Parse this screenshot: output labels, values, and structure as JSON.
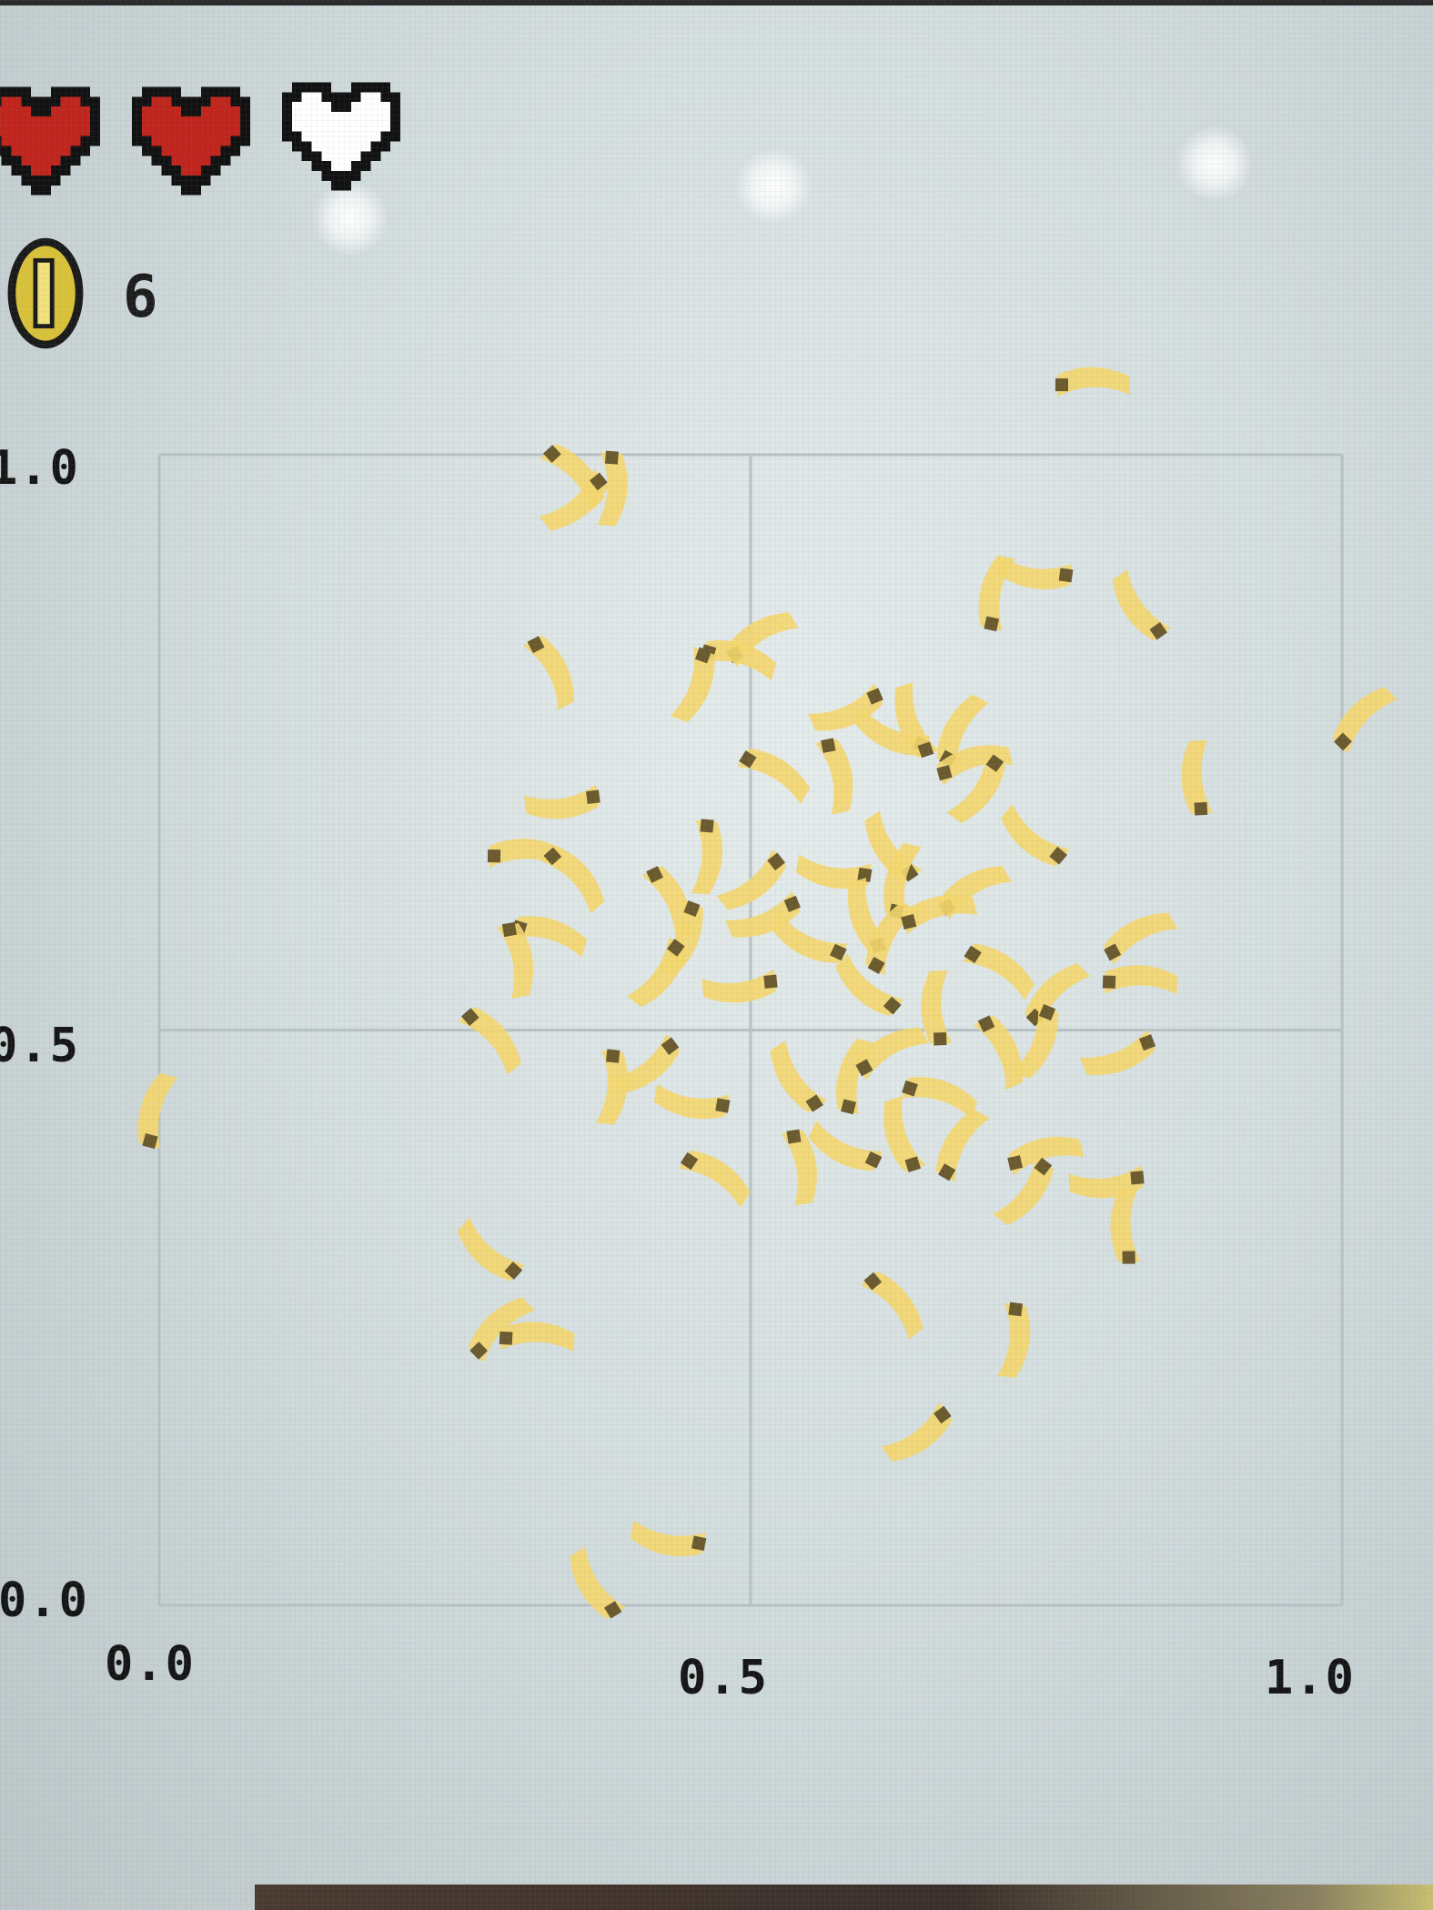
{
  "hud": {
    "hearts": [
      {
        "state": "full",
        "color": "#c0251d"
      },
      {
        "state": "full",
        "color": "#c0251d"
      },
      {
        "state": "empty",
        "color": "#ffffff"
      }
    ],
    "coin_icon": "gold-coin-icon",
    "coin_color": "#d9c23a",
    "coin_count": "6"
  },
  "chart_data": {
    "type": "scatter",
    "title": "",
    "xlabel": "",
    "ylabel": "",
    "xlim": [
      0.0,
      1.0
    ],
    "ylim": [
      0.0,
      1.0
    ],
    "grid": true,
    "x_ticks": [
      "0.0",
      "0.5",
      "1.0"
    ],
    "y_ticks": [
      "0.0",
      "0.5",
      "1.0"
    ],
    "marker": "banana-sprite",
    "marker_color": "#f5d76e",
    "points": [
      {
        "x": 0.79,
        "y": 1.06
      },
      {
        "x": 0.35,
        "y": 0.98
      },
      {
        "x": 0.38,
        "y": 0.97
      },
      {
        "x": 0.35,
        "y": 0.96
      },
      {
        "x": 0.74,
        "y": 0.9
      },
      {
        "x": 0.83,
        "y": 0.87
      },
      {
        "x": 0.71,
        "y": 0.88
      },
      {
        "x": 0.51,
        "y": 0.84
      },
      {
        "x": 0.49,
        "y": 0.82
      },
      {
        "x": 0.33,
        "y": 0.81
      },
      {
        "x": 0.45,
        "y": 0.8
      },
      {
        "x": 0.58,
        "y": 0.78
      },
      {
        "x": 0.62,
        "y": 0.76
      },
      {
        "x": 0.64,
        "y": 0.77
      },
      {
        "x": 0.68,
        "y": 0.76
      },
      {
        "x": 0.69,
        "y": 0.73
      },
      {
        "x": 0.52,
        "y": 0.72
      },
      {
        "x": 0.57,
        "y": 0.72
      },
      {
        "x": 0.69,
        "y": 0.71
      },
      {
        "x": 0.34,
        "y": 0.7
      },
      {
        "x": 0.74,
        "y": 0.67
      },
      {
        "x": 0.88,
        "y": 0.72
      },
      {
        "x": 1.02,
        "y": 0.77
      },
      {
        "x": 0.31,
        "y": 0.65
      },
      {
        "x": 0.35,
        "y": 0.63
      },
      {
        "x": 0.46,
        "y": 0.65
      },
      {
        "x": 0.5,
        "y": 0.63
      },
      {
        "x": 0.57,
        "y": 0.64
      },
      {
        "x": 0.62,
        "y": 0.66
      },
      {
        "x": 0.63,
        "y": 0.63
      },
      {
        "x": 0.69,
        "y": 0.62
      },
      {
        "x": 0.33,
        "y": 0.58
      },
      {
        "x": 0.43,
        "y": 0.61
      },
      {
        "x": 0.44,
        "y": 0.58
      },
      {
        "x": 0.51,
        "y": 0.6
      },
      {
        "x": 0.55,
        "y": 0.58
      },
      {
        "x": 0.6,
        "y": 0.6
      },
      {
        "x": 0.62,
        "y": 0.58
      },
      {
        "x": 0.66,
        "y": 0.6
      },
      {
        "x": 0.71,
        "y": 0.55
      },
      {
        "x": 0.3,
        "y": 0.56
      },
      {
        "x": 0.42,
        "y": 0.55
      },
      {
        "x": 0.49,
        "y": 0.54
      },
      {
        "x": 0.6,
        "y": 0.54
      },
      {
        "x": 0.66,
        "y": 0.52
      },
      {
        "x": 0.76,
        "y": 0.53
      },
      {
        "x": 0.83,
        "y": 0.54
      },
      {
        "x": 0.28,
        "y": 0.49
      },
      {
        "x": 0.38,
        "y": 0.45
      },
      {
        "x": 0.41,
        "y": 0.47
      },
      {
        "x": 0.45,
        "y": 0.44
      },
      {
        "x": 0.54,
        "y": 0.46
      },
      {
        "x": 0.59,
        "y": 0.46
      },
      {
        "x": 0.62,
        "y": 0.48
      },
      {
        "x": 0.66,
        "y": 0.44
      },
      {
        "x": 0.71,
        "y": 0.48
      },
      {
        "x": 0.74,
        "y": 0.49
      },
      {
        "x": 0.81,
        "y": 0.48
      },
      {
        "x": 0.58,
        "y": 0.4
      },
      {
        "x": 0.63,
        "y": 0.41
      },
      {
        "x": 0.68,
        "y": 0.4
      },
      {
        "x": 0.75,
        "y": 0.39
      },
      {
        "x": 0.47,
        "y": 0.37
      },
      {
        "x": 0.54,
        "y": 0.38
      },
      {
        "x": 0.73,
        "y": 0.36
      },
      {
        "x": 0.8,
        "y": 0.37
      },
      {
        "x": 0.28,
        "y": 0.31
      },
      {
        "x": 0.82,
        "y": 0.33
      },
      {
        "x": 0.29,
        "y": 0.24
      },
      {
        "x": 0.32,
        "y": 0.23
      },
      {
        "x": 0.62,
        "y": 0.26
      },
      {
        "x": 0.72,
        "y": 0.23
      },
      {
        "x": 0.64,
        "y": 0.15
      },
      {
        "x": 0.43,
        "y": 0.06
      },
      {
        "x": 0.37,
        "y": 0.02
      },
      {
        "x": 0.0,
        "y": 0.43
      },
      {
        "x": 0.83,
        "y": 0.58
      }
    ]
  }
}
